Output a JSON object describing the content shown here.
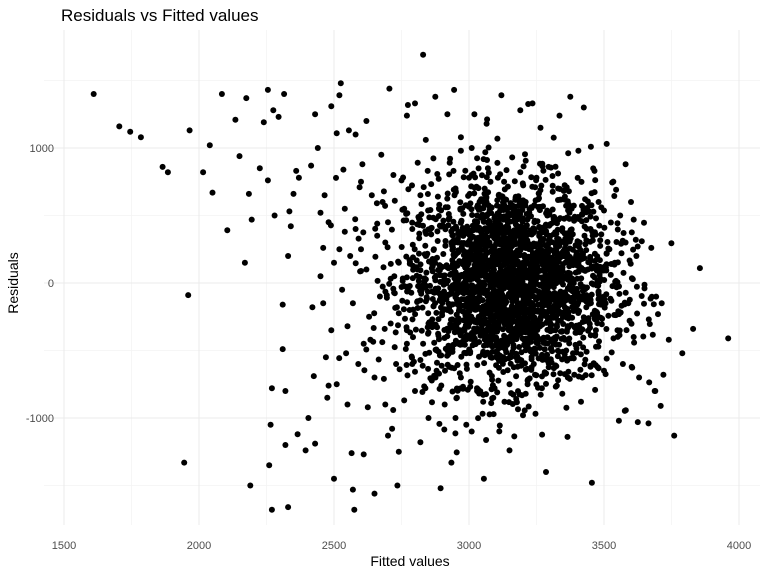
{
  "chart_data": {
    "type": "scatter",
    "title": "Residuals vs Fitted values",
    "xlabel": "Fitted values",
    "ylabel": "Residuals",
    "xlim": [
      1500,
      4000
    ],
    "ylim": [
      -1700,
      1750
    ],
    "x_ticks": [
      1500,
      2000,
      2500,
      3000,
      3500,
      4000
    ],
    "x_tick_labels": [
      "1500",
      "2000",
      "2500",
      "3000",
      "3500",
      "4000"
    ],
    "y_ticks": [
      -1000,
      0,
      1000
    ],
    "y_tick_labels": [
      "-1000",
      "0",
      "1000"
    ],
    "grid": true,
    "series": [
      {
        "color": "#000000",
        "points": [
          [
            1610,
            1400
          ],
          [
            1705,
            1160
          ],
          [
            1745,
            1120
          ],
          [
            1785,
            1080
          ],
          [
            1865,
            860
          ],
          [
            1885,
            820
          ],
          [
            1945,
            -1330
          ],
          [
            1960,
            -90
          ],
          [
            1965,
            1130
          ],
          [
            2015,
            820
          ],
          [
            2040,
            1020
          ],
          [
            2050,
            670
          ],
          [
            2085,
            1400
          ],
          [
            2105,
            390
          ],
          [
            2135,
            1210
          ],
          [
            2150,
            940
          ],
          [
            2170,
            150
          ],
          [
            2175,
            1370
          ],
          [
            2185,
            660
          ],
          [
            2190,
            -1500
          ],
          [
            2195,
            470
          ],
          [
            2225,
            850
          ],
          [
            2240,
            1190
          ],
          [
            2255,
            760
          ],
          [
            2255,
            1430
          ],
          [
            2260,
            -1350
          ],
          [
            2265,
            -1050
          ],
          [
            2270,
            -780
          ],
          [
            2270,
            -1680
          ],
          [
            2275,
            1280
          ],
          [
            2280,
            500
          ],
          [
            2295,
            1230
          ],
          [
            2310,
            -160
          ],
          [
            2310,
            -490
          ],
          [
            2315,
            1400
          ],
          [
            2320,
            -800
          ],
          [
            2320,
            -1200
          ],
          [
            2330,
            -1660
          ],
          [
            2330,
            200
          ],
          [
            2335,
            530
          ],
          [
            2340,
            420
          ],
          [
            2350,
            660
          ],
          [
            2360,
            830
          ],
          [
            2365,
            -1120
          ],
          [
            2370,
            780
          ],
          [
            2395,
            -1240
          ],
          [
            2405,
            -1000
          ],
          [
            2415,
            870
          ],
          [
            2420,
            -180
          ],
          [
            2425,
            -690
          ],
          [
            2430,
            1250
          ],
          [
            2430,
            -1190
          ],
          [
            2440,
            1000
          ],
          [
            2450,
            520
          ],
          [
            2460,
            260
          ],
          [
            2465,
            650
          ],
          [
            2475,
            -850
          ],
          [
            2480,
            -760
          ],
          [
            2490,
            1310
          ],
          [
            2500,
            -1450
          ],
          [
            2510,
            1110
          ],
          [
            2520,
            1390
          ],
          [
            2525,
            1480
          ],
          [
            2535,
            840
          ],
          [
            2540,
            380
          ],
          [
            2545,
            -520
          ],
          [
            2550,
            -320
          ],
          [
            2555,
            1130
          ],
          [
            2565,
            -1260
          ],
          [
            2570,
            -1530
          ],
          [
            2575,
            -1680
          ],
          [
            2580,
            1100
          ],
          [
            2595,
            710
          ],
          [
            2600,
            250
          ],
          [
            2605,
            880
          ],
          [
            2610,
            -1270
          ],
          [
            2620,
            1200
          ],
          [
            2625,
            -920
          ],
          [
            2635,
            -420
          ],
          [
            2650,
            -1560
          ],
          [
            2660,
            440
          ],
          [
            2675,
            950
          ],
          [
            2685,
            -710
          ],
          [
            2690,
            300
          ],
          [
            2700,
            -1130
          ],
          [
            2705,
            1440
          ],
          [
            2715,
            -1080
          ],
          [
            2725,
            610
          ],
          [
            2735,
            -1500
          ],
          [
            2740,
            -1250
          ],
          [
            2750,
            760
          ],
          [
            2760,
            -870
          ],
          [
            2770,
            1240
          ],
          [
            2780,
            170
          ],
          [
            2790,
            -600
          ],
          [
            2800,
            1330
          ],
          [
            2810,
            890
          ],
          [
            2820,
            -1180
          ],
          [
            2830,
            1690
          ],
          [
            2840,
            1060
          ],
          [
            2850,
            -300
          ],
          [
            2860,
            360
          ],
          [
            2875,
            1380
          ],
          [
            2885,
            640
          ],
          [
            2895,
            -1520
          ],
          [
            2905,
            -110
          ],
          [
            2920,
            1250
          ],
          [
            2935,
            -1330
          ],
          [
            2945,
            1430
          ],
          [
            2955,
            -850
          ],
          [
            2970,
            1080
          ],
          [
            2985,
            220
          ],
          [
            2990,
            -520
          ],
          [
            3000,
            780
          ],
          [
            3010,
            -1100
          ],
          [
            3020,
            1250
          ],
          [
            3030,
            90
          ],
          [
            3040,
            -360
          ],
          [
            3045,
            620
          ],
          [
            3055,
            -1450
          ],
          [
            3065,
            1180
          ],
          [
            3075,
            -230
          ],
          [
            3085,
            350
          ],
          [
            3095,
            -780
          ],
          [
            3105,
            1070
          ],
          [
            3120,
            1390
          ],
          [
            3130,
            -40
          ],
          [
            3140,
            540
          ],
          [
            3150,
            -1240
          ],
          [
            3160,
            930
          ],
          [
            3170,
            160
          ],
          [
            3180,
            -620
          ],
          [
            3190,
            1280
          ],
          [
            3200,
            -980
          ],
          [
            3210,
            380
          ],
          [
            3220,
            -150
          ],
          [
            3235,
            1330
          ],
          [
            3245,
            710
          ],
          [
            3255,
            -450
          ],
          [
            3265,
            1150
          ],
          [
            3275,
            20
          ],
          [
            3285,
            -1400
          ],
          [
            3295,
            860
          ],
          [
            3305,
            -310
          ],
          [
            3315,
            450
          ],
          [
            3325,
            -760
          ],
          [
            3335,
            1240
          ],
          [
            3345,
            100
          ],
          [
            3355,
            640
          ],
          [
            3365,
            -1140
          ],
          [
            3375,
            1380
          ],
          [
            3385,
            -520
          ],
          [
            3395,
            280
          ],
          [
            3405,
            980
          ],
          [
            3415,
            -880
          ],
          [
            3425,
            1300
          ],
          [
            3435,
            -90
          ],
          [
            3445,
            530
          ],
          [
            3455,
            -1480
          ],
          [
            3465,
            830
          ],
          [
            3475,
            -240
          ],
          [
            3490,
            360
          ],
          [
            3500,
            -650
          ],
          [
            3510,
            1030
          ],
          [
            3525,
            60
          ],
          [
            3535,
            -410
          ],
          [
            3545,
            690
          ],
          [
            3555,
            -1020
          ],
          [
            3565,
            220
          ],
          [
            3580,
            880
          ],
          [
            3595,
            -280
          ],
          [
            3610,
            470
          ],
          [
            3625,
            -1030
          ],
          [
            3640,
            310
          ],
          [
            3650,
            -40
          ],
          [
            3665,
            -1040
          ],
          [
            3675,
            260
          ],
          [
            3690,
            -800
          ],
          [
            3700,
            -230
          ],
          [
            3710,
            -910
          ],
          [
            3720,
            -680
          ],
          [
            3740,
            -420
          ],
          [
            3760,
            -1130
          ],
          [
            3790,
            -520
          ],
          [
            3830,
            -340
          ],
          [
            3855,
            110
          ],
          [
            3960,
            -410
          ],
          [
            2900,
            120
          ],
          [
            2920,
            -200
          ],
          [
            2940,
            400
          ],
          [
            2960,
            -450
          ],
          [
            2980,
            50
          ],
          [
            3000,
            300
          ],
          [
            3010,
            -150
          ],
          [
            3030,
            500
          ],
          [
            3050,
            -300
          ],
          [
            3060,
            200
          ],
          [
            3080,
            -550
          ],
          [
            3090,
            100
          ],
          [
            3110,
            650
          ],
          [
            3120,
            -100
          ],
          [
            3140,
            250
          ],
          [
            3150,
            -400
          ],
          [
            3170,
            450
          ],
          [
            3180,
            -250
          ],
          [
            3200,
            150
          ],
          [
            3210,
            600
          ],
          [
            3230,
            -50
          ],
          [
            3240,
            -600
          ],
          [
            3260,
            350
          ],
          [
            3270,
            -200
          ],
          [
            3290,
            500
          ],
          [
            3300,
            50
          ],
          [
            3320,
            -350
          ],
          [
            3330,
            700
          ],
          [
            3350,
            200
          ],
          [
            3360,
            -500
          ],
          [
            3380,
            550
          ],
          [
            3390,
            -150
          ],
          [
            3410,
            300
          ],
          [
            3420,
            -700
          ],
          [
            3440,
            100
          ],
          [
            3450,
            400
          ],
          [
            3470,
            -350
          ],
          [
            3480,
            600
          ],
          [
            3500,
            -100
          ],
          [
            3520,
            250
          ],
          [
            2950,
            700
          ],
          [
            2970,
            -700
          ],
          [
            3010,
            800
          ],
          [
            3030,
            -800
          ],
          [
            3070,
            850
          ],
          [
            3090,
            -850
          ],
          [
            3130,
            750
          ],
          [
            3150,
            -750
          ],
          [
            3190,
            820
          ],
          [
            3210,
            -820
          ],
          [
            3250,
            780
          ],
          [
            3270,
            -780
          ],
          [
            3310,
            720
          ],
          [
            3330,
            -720
          ],
          [
            3370,
            680
          ],
          [
            3390,
            -680
          ],
          [
            3430,
            620
          ],
          [
            3450,
            -620
          ],
          [
            3490,
            560
          ],
          [
            3510,
            -560
          ],
          [
            2860,
            -300
          ],
          [
            2870,
            250
          ],
          [
            2880,
            -650
          ],
          [
            2890,
            580
          ],
          [
            2910,
            -900
          ],
          [
            2930,
            920
          ],
          [
            2950,
            -1000
          ],
          [
            2970,
            980
          ],
          [
            2990,
            -1050
          ],
          [
            3010,
            1000
          ],
          [
            2780,
            -200
          ],
          [
            2790,
            400
          ],
          [
            2800,
            -800
          ],
          [
            2810,
            100
          ],
          [
            2820,
            650
          ],
          [
            2830,
            -450
          ],
          [
            2840,
            200
          ],
          [
            2850,
            -1000
          ],
          [
            2760,
            550
          ],
          [
            2770,
            -350
          ],
          [
            2740,
            150
          ],
          [
            2730,
            -600
          ],
          [
            2720,
            800
          ],
          [
            2710,
            -300
          ],
          [
            2700,
            450
          ],
          [
            2690,
            -900
          ],
          [
            2680,
            600
          ],
          [
            2670,
            -100
          ],
          [
            2660,
            350
          ],
          [
            2650,
            -700
          ],
          [
            2640,
            650
          ],
          [
            2630,
            -250
          ],
          [
            2620,
            100
          ],
          [
            2610,
            -450
          ],
          [
            2600,
            750
          ],
          [
            2590,
            -600
          ],
          [
            2580,
            400
          ],
          [
            2570,
            -150
          ],
          [
            2560,
            200
          ],
          [
            2550,
            -900
          ],
          [
            2540,
            550
          ],
          [
            2530,
            -50
          ],
          [
            2520,
            250
          ],
          [
            2510,
            -750
          ],
          [
            2500,
            150
          ],
          [
            2490,
            -350
          ],
          [
            2480,
            450
          ],
          [
            2470,
            -550
          ],
          [
            2460,
            -150
          ],
          [
            2450,
            50
          ],
          [
            3540,
            150
          ],
          [
            3550,
            -350
          ],
          [
            3560,
            500
          ],
          [
            3570,
            -600
          ],
          [
            3580,
            300
          ],
          [
            3590,
            -150
          ],
          [
            3600,
            600
          ],
          [
            3610,
            -400
          ],
          [
            3620,
            200
          ],
          [
            3630,
            -700
          ]
        ]
      }
    ]
  }
}
